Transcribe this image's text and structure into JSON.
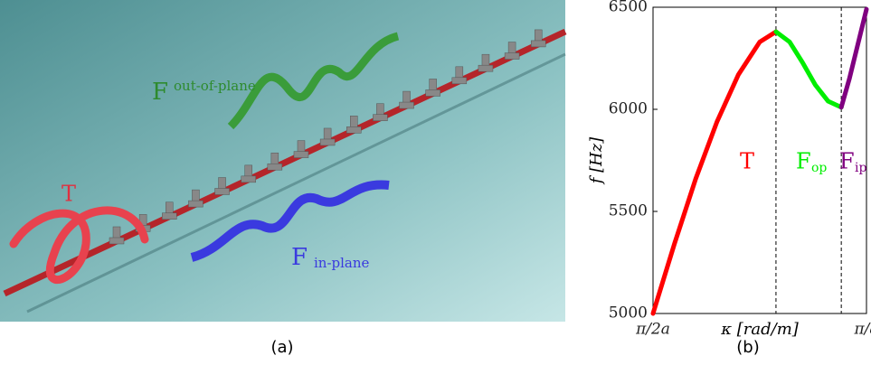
{
  "panel_a": {
    "labels": [
      {
        "text": "F",
        "sub": "out-of-plane"
      },
      {
        "text": "T"
      },
      {
        "text": "F",
        "sub": "in-plane"
      }
    ]
  },
  "chart_data": {
    "type": "line",
    "xlabel": "κ [rad/m]",
    "ylabel": "f [Hz]",
    "xlim": [
      0.5,
      1.0
    ],
    "xticks": [
      {
        "value": 0.5,
        "label": "π/2a"
      },
      {
        "value": 1.0,
        "label": "π/a"
      }
    ],
    "ylim": [
      5000,
      6500
    ],
    "yticks": [
      5000,
      5500,
      6000,
      6500
    ],
    "vlines": [
      0.788,
      0.941
    ],
    "series": [
      {
        "name": "T",
        "color": "#ff0000",
        "x": [
          0.5,
          0.55,
          0.6,
          0.65,
          0.7,
          0.75,
          0.788
        ],
        "values": [
          5000,
          5340,
          5660,
          5940,
          6170,
          6330,
          6380
        ]
      },
      {
        "name": "F",
        "sub": "op",
        "color": "#00ee00",
        "x": [
          0.788,
          0.82,
          0.85,
          0.88,
          0.91,
          0.941
        ],
        "values": [
          6380,
          6330,
          6230,
          6120,
          6040,
          6010
        ]
      },
      {
        "name": "F",
        "sub": "ip",
        "color": "#800080",
        "x": [
          0.941,
          0.96,
          0.98,
          1.0
        ],
        "values": [
          6010,
          6150,
          6320,
          6490
        ]
      }
    ]
  },
  "captions": [
    "(a)",
    "(b)"
  ]
}
